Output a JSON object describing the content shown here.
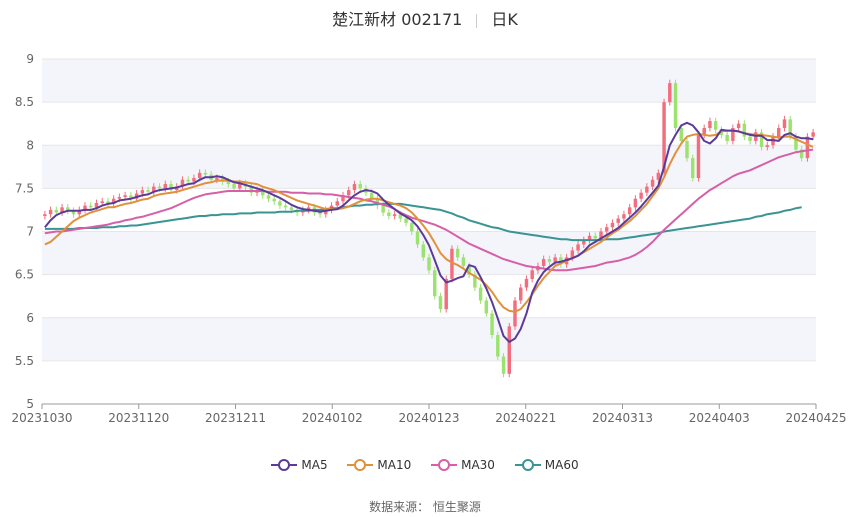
{
  "header": {
    "title": "楚江新材 002171",
    "period": "日K"
  },
  "footer": {
    "source_label": "数据来源：",
    "source_name": "恒生聚源"
  },
  "colors": {
    "up": "#f26d7d",
    "down": "#9be26e",
    "ma5": "#5b3a9b",
    "ma10": "#e0913c",
    "ma30": "#d65fa8",
    "ma60": "#3a9494",
    "grid": "#e6e6e6",
    "band": "#f4f5fb"
  },
  "chart_data": {
    "type": "candlestick",
    "title": "楚江新材 002171",
    "ylim": [
      5,
      9
    ],
    "yticks": [
      "9",
      "8.5",
      "8",
      "7.5",
      "7",
      "6.5",
      "6",
      "5.5",
      "5"
    ],
    "x_tick_labels": [
      "20231030",
      "20231120",
      "20231211",
      "20240102",
      "20240123",
      "20240221",
      "20240313",
      "20240403",
      "20240425"
    ],
    "legend": [
      "MA5",
      "MA10",
      "MA30",
      "MA60"
    ],
    "legend_position": "bottom",
    "close": [
      7.2,
      7.25,
      7.22,
      7.28,
      7.24,
      7.2,
      7.25,
      7.3,
      7.28,
      7.33,
      7.35,
      7.32,
      7.38,
      7.4,
      7.42,
      7.38,
      7.44,
      7.48,
      7.46,
      7.52,
      7.5,
      7.55,
      7.48,
      7.52,
      7.6,
      7.58,
      7.62,
      7.68,
      7.66,
      7.6,
      7.62,
      7.58,
      7.55,
      7.5,
      7.56,
      7.52,
      7.45,
      7.48,
      7.42,
      7.38,
      7.35,
      7.3,
      7.28,
      7.25,
      7.22,
      7.25,
      7.28,
      7.22,
      7.2,
      7.25,
      7.3,
      7.35,
      7.42,
      7.48,
      7.55,
      7.5,
      7.45,
      7.38,
      7.3,
      7.22,
      7.18,
      7.2,
      7.15,
      7.1,
      7.0,
      6.85,
      6.7,
      6.55,
      6.25,
      6.1,
      6.45,
      6.8,
      6.7,
      6.6,
      6.5,
      6.35,
      6.2,
      6.05,
      5.8,
      5.55,
      5.35,
      5.9,
      6.2,
      6.35,
      6.45,
      6.55,
      6.6,
      6.68,
      6.65,
      6.7,
      6.62,
      6.7,
      6.78,
      6.85,
      6.9,
      6.95,
      6.92,
      7.0,
      7.05,
      7.1,
      7.15,
      7.2,
      7.28,
      7.38,
      7.45,
      7.52,
      7.6,
      7.68,
      8.5,
      8.72,
      8.2,
      8.05,
      7.85,
      7.62,
      8.12,
      8.2,
      8.28,
      8.18,
      8.12,
      8.05,
      8.2,
      8.25,
      8.1,
      8.05,
      8.15,
      7.98,
      8.0,
      8.1,
      8.2,
      8.3,
      8.1,
      7.95,
      7.85,
      8.1,
      8.15
    ],
    "ma5": [
      7.05,
      7.13,
      7.19,
      7.22,
      7.24,
      7.24,
      7.24,
      7.25,
      7.25,
      7.27,
      7.3,
      7.32,
      7.33,
      7.36,
      7.37,
      7.38,
      7.4,
      7.42,
      7.43,
      7.46,
      7.48,
      7.49,
      7.5,
      7.51,
      7.53,
      7.55,
      7.56,
      7.6,
      7.63,
      7.63,
      7.64,
      7.63,
      7.6,
      7.57,
      7.56,
      7.54,
      7.52,
      7.5,
      7.48,
      7.45,
      7.42,
      7.39,
      7.35,
      7.31,
      7.28,
      7.26,
      7.25,
      7.24,
      7.23,
      7.24,
      7.25,
      7.26,
      7.3,
      7.36,
      7.42,
      7.46,
      7.48,
      7.47,
      7.44,
      7.37,
      7.31,
      7.26,
      7.21,
      7.17,
      7.13,
      7.06,
      6.96,
      6.84,
      6.67,
      6.49,
      6.41,
      6.43,
      6.46,
      6.48,
      6.61,
      6.59,
      6.47,
      6.34,
      6.18,
      5.99,
      5.79,
      5.72,
      5.76,
      5.87,
      6.05,
      6.29,
      6.43,
      6.53,
      6.59,
      6.64,
      6.65,
      6.67,
      6.69,
      6.72,
      6.77,
      6.84,
      6.88,
      6.92,
      6.96,
      7.0,
      7.04,
      7.1,
      7.16,
      7.22,
      7.29,
      7.37,
      7.45,
      7.53,
      7.75,
      8.0,
      8.12,
      8.23,
      8.26,
      8.23,
      8.15,
      8.05,
      8.02,
      8.08,
      8.18,
      8.17,
      8.17,
      8.16,
      8.14,
      8.12,
      8.11,
      8.11,
      8.06,
      8.06,
      8.05,
      8.12,
      8.14,
      8.1,
      8.08,
      8.08,
      8.07
    ],
    "ma10": [
      6.85,
      6.88,
      6.94,
      7.0,
      7.06,
      7.12,
      7.16,
      7.19,
      7.22,
      7.24,
      7.26,
      7.28,
      7.28,
      7.3,
      7.32,
      7.33,
      7.35,
      7.37,
      7.38,
      7.41,
      7.43,
      7.44,
      7.45,
      7.46,
      7.48,
      7.5,
      7.52,
      7.54,
      7.56,
      7.57,
      7.59,
      7.59,
      7.59,
      7.58,
      7.58,
      7.57,
      7.56,
      7.55,
      7.52,
      7.5,
      7.48,
      7.45,
      7.42,
      7.39,
      7.36,
      7.34,
      7.32,
      7.3,
      7.28,
      7.26,
      7.26,
      7.26,
      7.27,
      7.29,
      7.32,
      7.35,
      7.37,
      7.38,
      7.38,
      7.36,
      7.34,
      7.32,
      7.3,
      7.27,
      7.22,
      7.15,
      7.07,
      6.98,
      6.87,
      6.75,
      6.68,
      6.64,
      6.61,
      6.57,
      6.52,
      6.48,
      6.44,
      6.38,
      6.3,
      6.2,
      6.12,
      6.08,
      6.07,
      6.1,
      6.18,
      6.27,
      6.37,
      6.46,
      6.53,
      6.6,
      6.63,
      6.66,
      6.69,
      6.72,
      6.76,
      6.8,
      6.84,
      6.88,
      6.93,
      6.98,
      7.02,
      7.07,
      7.12,
      7.18,
      7.25,
      7.32,
      7.41,
      7.5,
      7.63,
      7.78,
      7.91,
      8.02,
      8.1,
      8.12,
      8.13,
      8.12,
      8.11,
      8.12,
      8.16,
      8.17,
      8.17,
      8.16,
      8.14,
      8.13,
      8.12,
      8.12,
      8.11,
      8.1,
      8.09,
      8.1,
      8.1,
      8.07,
      8.04,
      8.01,
      7.98
    ],
    "ma30": [
      6.98,
      6.99,
      7.0,
      7.0,
      7.01,
      7.02,
      7.03,
      7.04,
      7.05,
      7.06,
      7.07,
      7.08,
      7.1,
      7.11,
      7.13,
      7.14,
      7.16,
      7.17,
      7.19,
      7.21,
      7.23,
      7.25,
      7.27,
      7.3,
      7.33,
      7.36,
      7.39,
      7.41,
      7.43,
      7.44,
      7.45,
      7.46,
      7.47,
      7.47,
      7.47,
      7.47,
      7.47,
      7.47,
      7.47,
      7.46,
      7.46,
      7.46,
      7.46,
      7.45,
      7.45,
      7.45,
      7.44,
      7.44,
      7.44,
      7.43,
      7.43,
      7.42,
      7.41,
      7.4,
      7.39,
      7.38,
      7.36,
      7.35,
      7.33,
      7.31,
      7.29,
      7.26,
      7.22,
      7.19,
      7.16,
      7.14,
      7.12,
      7.1,
      7.08,
      7.05,
      7.02,
      6.98,
      6.94,
      6.9,
      6.86,
      6.83,
      6.8,
      6.77,
      6.74,
      6.71,
      6.68,
      6.66,
      6.64,
      6.62,
      6.6,
      6.59,
      6.58,
      6.57,
      6.56,
      6.55,
      6.55,
      6.55,
      6.56,
      6.57,
      6.58,
      6.59,
      6.6,
      6.62,
      6.64,
      6.65,
      6.66,
      6.68,
      6.7,
      6.73,
      6.77,
      6.82,
      6.88,
      6.95,
      7.02,
      7.08,
      7.14,
      7.2,
      7.26,
      7.32,
      7.38,
      7.43,
      7.48,
      7.52,
      7.56,
      7.6,
      7.64,
      7.67,
      7.69,
      7.71,
      7.74,
      7.77,
      7.8,
      7.83,
      7.86,
      7.88,
      7.9,
      7.92,
      7.93,
      7.94,
      7.95
    ],
    "ma60": [
      7.03,
      7.03,
      7.03,
      7.03,
      7.03,
      7.03,
      7.04,
      7.04,
      7.04,
      7.04,
      7.05,
      7.05,
      7.05,
      7.06,
      7.06,
      7.07,
      7.07,
      7.08,
      7.09,
      7.1,
      7.11,
      7.12,
      7.13,
      7.14,
      7.15,
      7.16,
      7.17,
      7.18,
      7.18,
      7.19,
      7.19,
      7.2,
      7.2,
      7.2,
      7.21,
      7.21,
      7.21,
      7.22,
      7.22,
      7.22,
      7.22,
      7.23,
      7.23,
      7.23,
      7.24,
      7.24,
      7.24,
      7.25,
      7.25,
      7.26,
      7.27,
      7.27,
      7.28,
      7.29,
      7.3,
      7.3,
      7.31,
      7.31,
      7.32,
      7.32,
      7.32,
      7.32,
      7.32,
      7.31,
      7.3,
      7.29,
      7.28,
      7.27,
      7.26,
      7.25,
      7.23,
      7.21,
      7.18,
      7.16,
      7.13,
      7.11,
      7.09,
      7.07,
      7.05,
      7.04,
      7.02,
      7.0,
      6.99,
      6.98,
      6.97,
      6.96,
      6.95,
      6.94,
      6.93,
      6.92,
      6.91,
      6.91,
      6.9,
      6.9,
      6.9,
      6.9,
      6.9,
      6.9,
      6.91,
      6.91,
      6.91,
      6.92,
      6.93,
      6.94,
      6.95,
      6.96,
      6.97,
      6.98,
      7.0,
      7.01,
      7.02,
      7.03,
      7.04,
      7.05,
      7.06,
      7.07,
      7.08,
      7.09,
      7.1,
      7.11,
      7.12,
      7.13,
      7.14,
      7.15,
      7.17,
      7.18,
      7.2,
      7.21,
      7.22,
      7.24,
      7.25,
      7.27,
      7.28
    ]
  }
}
